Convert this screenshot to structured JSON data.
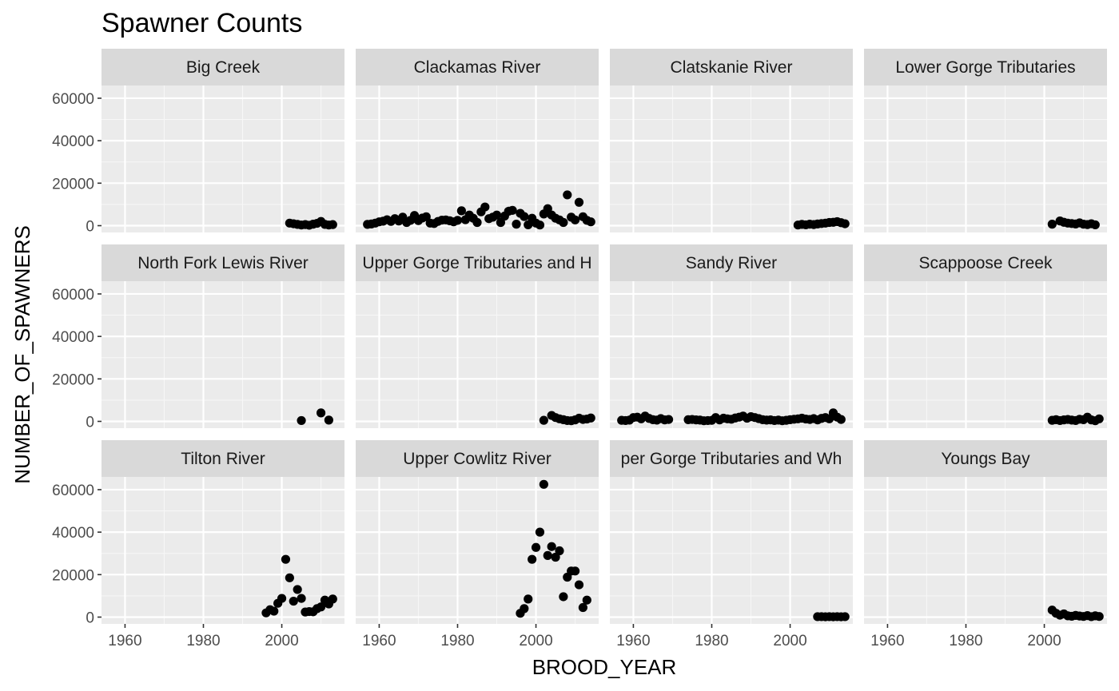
{
  "chart_data": {
    "type": "scatter",
    "title": "Spawner Counts",
    "xlabel": "BROOD_YEAR",
    "ylabel": "NUMBER_OF_SPAWNERS",
    "xlim": [
      1954,
      2016
    ],
    "ylim": [
      -3200,
      66000
    ],
    "x_ticks": [
      1960,
      1980,
      2000
    ],
    "y_ticks": [
      0,
      20000,
      40000,
      60000
    ],
    "x_tick_labels": [
      "1960",
      "1980",
      "2000"
    ],
    "y_tick_labels": [
      "0",
      "20000",
      "40000",
      "60000"
    ],
    "grid": true,
    "point_color": "#000000",
    "panel_background": "#ebebeb",
    "strip_background": "#d9d9d9",
    "facets": [
      {
        "label": "Big Creek",
        "points": [
          [
            2002,
            1200
          ],
          [
            2003,
            900
          ],
          [
            2004,
            600
          ],
          [
            2005,
            300
          ],
          [
            2006,
            500
          ],
          [
            2007,
            200
          ],
          [
            2008,
            700
          ],
          [
            2009,
            1100
          ],
          [
            2010,
            2000
          ],
          [
            2011,
            600
          ],
          [
            2012,
            300
          ],
          [
            2013,
            500
          ]
        ]
      },
      {
        "label": "Clackamas River",
        "points": [
          [
            1957,
            600
          ],
          [
            1958,
            800
          ],
          [
            1959,
            1200
          ],
          [
            1960,
            1800
          ],
          [
            1961,
            2100
          ],
          [
            1962,
            2800
          ],
          [
            1963,
            2000
          ],
          [
            1964,
            3300
          ],
          [
            1965,
            2200
          ],
          [
            1966,
            4000
          ],
          [
            1967,
            1500
          ],
          [
            1968,
            2500
          ],
          [
            1969,
            4800
          ],
          [
            1970,
            2400
          ],
          [
            1971,
            3600
          ],
          [
            1972,
            4200
          ],
          [
            1973,
            1200
          ],
          [
            1974,
            1000
          ],
          [
            1975,
            2000
          ],
          [
            1976,
            2600
          ],
          [
            1977,
            2700
          ],
          [
            1978,
            2300
          ],
          [
            1979,
            1800
          ],
          [
            1980,
            2500
          ],
          [
            1981,
            7000
          ],
          [
            1982,
            2800
          ],
          [
            1983,
            5000
          ],
          [
            1984,
            3500
          ],
          [
            1985,
            1500
          ],
          [
            1986,
            6500
          ],
          [
            1987,
            8800
          ],
          [
            1988,
            3300
          ],
          [
            1989,
            4000
          ],
          [
            1990,
            5000
          ],
          [
            1991,
            1500
          ],
          [
            1992,
            4500
          ],
          [
            1993,
            6800
          ],
          [
            1994,
            7200
          ],
          [
            1995,
            700
          ],
          [
            1996,
            5800
          ],
          [
            1997,
            4300
          ],
          [
            1998,
            400
          ],
          [
            1999,
            3500
          ],
          [
            2000,
            1200
          ],
          [
            2001,
            300
          ],
          [
            2002,
            5500
          ],
          [
            2003,
            8000
          ],
          [
            2004,
            5000
          ],
          [
            2005,
            3500
          ],
          [
            2006,
            2700
          ],
          [
            2007,
            1500
          ],
          [
            2008,
            14500
          ],
          [
            2009,
            4000
          ],
          [
            2010,
            2700
          ],
          [
            2011,
            11000
          ],
          [
            2012,
            4200
          ],
          [
            2013,
            2500
          ],
          [
            2014,
            1800
          ]
        ]
      },
      {
        "label": "Clatskanie River",
        "points": [
          [
            2002,
            300
          ],
          [
            2003,
            600
          ],
          [
            2004,
            400
          ],
          [
            2005,
            700
          ],
          [
            2006,
            500
          ],
          [
            2007,
            800
          ],
          [
            2008,
            1000
          ],
          [
            2009,
            1200
          ],
          [
            2010,
            1500
          ],
          [
            2011,
            1600
          ],
          [
            2012,
            1900
          ],
          [
            2013,
            1400
          ],
          [
            2014,
            900
          ]
        ]
      },
      {
        "label": "Lower Gorge Tributaries",
        "points": [
          [
            2002,
            700
          ],
          [
            2004,
            2200
          ],
          [
            2005,
            1600
          ],
          [
            2006,
            1200
          ],
          [
            2007,
            1000
          ],
          [
            2008,
            800
          ],
          [
            2009,
            1300
          ],
          [
            2010,
            700
          ],
          [
            2011,
            500
          ],
          [
            2012,
            900
          ],
          [
            2013,
            400
          ]
        ]
      },
      {
        "label": "North Fork Lewis River",
        "points": [
          [
            2005,
            400
          ],
          [
            2010,
            4000
          ],
          [
            2012,
            600
          ]
        ]
      },
      {
        "label": "Upper Gorge Tributaries and H",
        "points": [
          [
            2002,
            500
          ],
          [
            2004,
            2800
          ],
          [
            2005,
            1800
          ],
          [
            2006,
            1200
          ],
          [
            2007,
            800
          ],
          [
            2008,
            400
          ],
          [
            2009,
            300
          ],
          [
            2010,
            700
          ],
          [
            2011,
            1500
          ],
          [
            2012,
            900
          ],
          [
            2013,
            1100
          ],
          [
            2014,
            1600
          ]
        ]
      },
      {
        "label": "Sandy River",
        "points": [
          [
            1957,
            500
          ],
          [
            1958,
            400
          ],
          [
            1959,
            600
          ],
          [
            1960,
            1800
          ],
          [
            1961,
            2000
          ],
          [
            1962,
            1200
          ],
          [
            1963,
            2500
          ],
          [
            1964,
            1400
          ],
          [
            1965,
            800
          ],
          [
            1966,
            600
          ],
          [
            1967,
            1300
          ],
          [
            1968,
            700
          ],
          [
            1969,
            900
          ],
          [
            1974,
            800
          ],
          [
            1975,
            900
          ],
          [
            1976,
            700
          ],
          [
            1977,
            600
          ],
          [
            1978,
            300
          ],
          [
            1979,
            400
          ],
          [
            1980,
            500
          ],
          [
            1981,
            1800
          ],
          [
            1982,
            700
          ],
          [
            1983,
            1500
          ],
          [
            1984,
            1200
          ],
          [
            1985,
            1000
          ],
          [
            1986,
            1600
          ],
          [
            1987,
            2000
          ],
          [
            1988,
            2500
          ],
          [
            1989,
            1500
          ],
          [
            1990,
            2200
          ],
          [
            1991,
            1800
          ],
          [
            1992,
            1300
          ],
          [
            1993,
            800
          ],
          [
            1994,
            600
          ],
          [
            1995,
            700
          ],
          [
            1996,
            400
          ],
          [
            1997,
            600
          ],
          [
            1998,
            300
          ],
          [
            1999,
            500
          ],
          [
            2000,
            800
          ],
          [
            2001,
            1000
          ],
          [
            2002,
            1200
          ],
          [
            2003,
            1500
          ],
          [
            2004,
            1100
          ],
          [
            2005,
            900
          ],
          [
            2006,
            1300
          ],
          [
            2007,
            700
          ],
          [
            2008,
            1400
          ],
          [
            2009,
            1800
          ],
          [
            2010,
            1200
          ],
          [
            2011,
            4000
          ],
          [
            2012,
            2000
          ],
          [
            2013,
            900
          ]
        ]
      },
      {
        "label": "Scappoose Creek",
        "points": [
          [
            2002,
            500
          ],
          [
            2003,
            800
          ],
          [
            2004,
            400
          ],
          [
            2005,
            700
          ],
          [
            2006,
            900
          ],
          [
            2007,
            600
          ],
          [
            2008,
            400
          ],
          [
            2009,
            1000
          ],
          [
            2010,
            800
          ],
          [
            2011,
            2000
          ],
          [
            2012,
            700
          ],
          [
            2013,
            300
          ],
          [
            2014,
            1200
          ]
        ]
      },
      {
        "label": "Tilton River",
        "points": [
          [
            1996,
            2000
          ],
          [
            1997,
            3500
          ],
          [
            1998,
            2800
          ],
          [
            1999,
            6500
          ],
          [
            2000,
            8800
          ],
          [
            2001,
            27200
          ],
          [
            2002,
            18500
          ],
          [
            2003,
            7500
          ],
          [
            2004,
            13000
          ],
          [
            2005,
            8800
          ],
          [
            2006,
            2400
          ],
          [
            2007,
            2600
          ],
          [
            2008,
            2500
          ],
          [
            2009,
            4000
          ],
          [
            2010,
            4800
          ],
          [
            2011,
            8000
          ],
          [
            2012,
            6200
          ],
          [
            2013,
            8500
          ]
        ]
      },
      {
        "label": "Upper Cowlitz River",
        "points": [
          [
            1996,
            1800
          ],
          [
            1997,
            4000
          ],
          [
            1998,
            8500
          ],
          [
            1999,
            27200
          ],
          [
            2000,
            32800
          ],
          [
            2001,
            40000
          ],
          [
            2002,
            62500
          ],
          [
            2003,
            29000
          ],
          [
            2004,
            33200
          ],
          [
            2005,
            28200
          ],
          [
            2006,
            31200
          ],
          [
            2007,
            9600
          ],
          [
            2008,
            18800
          ],
          [
            2009,
            21700
          ],
          [
            2010,
            21700
          ],
          [
            2011,
            15200
          ],
          [
            2012,
            4500
          ],
          [
            2013,
            8000
          ]
        ]
      },
      {
        "label": "per Gorge Tributaries and Wh",
        "points": [
          [
            2007,
            200
          ],
          [
            2008,
            200
          ],
          [
            2009,
            150
          ],
          [
            2010,
            200
          ],
          [
            2011,
            150
          ],
          [
            2012,
            200
          ],
          [
            2013,
            150
          ],
          [
            2014,
            200
          ]
        ]
      },
      {
        "label": "Youngs Bay",
        "points": [
          [
            2002,
            3300
          ],
          [
            2003,
            1800
          ],
          [
            2004,
            900
          ],
          [
            2005,
            1500
          ],
          [
            2006,
            600
          ],
          [
            2007,
            400
          ],
          [
            2008,
            800
          ],
          [
            2009,
            500
          ],
          [
            2010,
            300
          ],
          [
            2011,
            700
          ],
          [
            2012,
            200
          ],
          [
            2013,
            600
          ],
          [
            2014,
            300
          ]
        ]
      }
    ]
  }
}
